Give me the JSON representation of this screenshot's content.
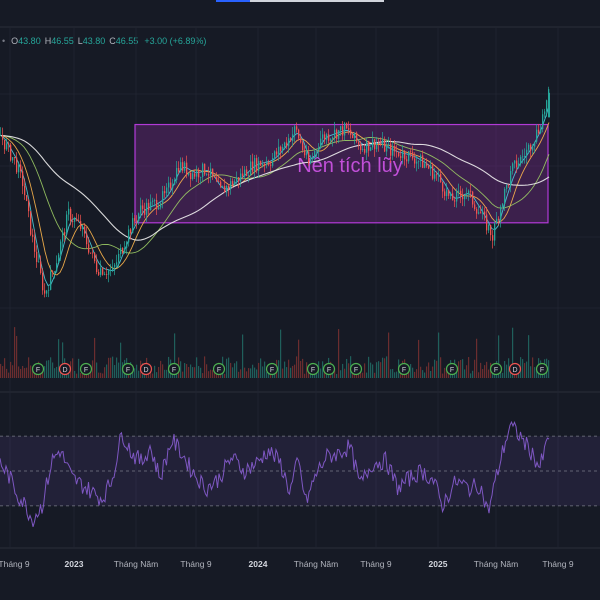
{
  "header": {
    "ohlc": {
      "open_label": "O",
      "open": "43.80",
      "high_label": "H",
      "high": "46.55",
      "low_label": "L",
      "low": "43.80",
      "close_label": "C",
      "close": "46.55",
      "change": "+3.00 (+6.89%)"
    }
  },
  "colors": {
    "background": "#161a25",
    "up": "#26a69a",
    "down": "#ef5350",
    "box_border": "#b13ad6",
    "box_fill": "#7b2a8e",
    "annotation": "#c14fd8",
    "rsi_line": "#7e57c2",
    "event_green": "#4caf50",
    "event_red": "#ef5350"
  },
  "chart_data": {
    "type": "candlestick",
    "annotation": "Nền tích lũy",
    "x_axis_labels": [
      "Tháng 9",
      "2023",
      "Tháng Năm",
      "Tháng 9",
      "2024",
      "Tháng Năm",
      "Tháng 9",
      "2025",
      "Tháng Năm",
      "Tháng 9"
    ],
    "last_bar": {
      "open": 43.8,
      "high": 46.55,
      "low": 43.8,
      "close": 46.55,
      "change": 3.0,
      "change_pct": 6.89
    },
    "price_path": [
      {
        "t": 0,
        "p": 41.8
      },
      {
        "t": 8,
        "p": 40.0
      },
      {
        "t": 14,
        "p": 39.0
      },
      {
        "t": 22,
        "p": 36.5
      },
      {
        "t": 32,
        "p": 30.0
      },
      {
        "t": 44,
        "p": 24.0
      },
      {
        "t": 55,
        "p": 27.5
      },
      {
        "t": 68,
        "p": 33.0
      },
      {
        "t": 80,
        "p": 31.5
      },
      {
        "t": 96,
        "p": 27.0
      },
      {
        "t": 112,
        "p": 26.5
      },
      {
        "t": 128,
        "p": 31.0
      },
      {
        "t": 140,
        "p": 33.5
      },
      {
        "t": 152,
        "p": 34.0
      },
      {
        "t": 165,
        "p": 35.0
      },
      {
        "t": 178,
        "p": 38.5
      },
      {
        "t": 192,
        "p": 37.5
      },
      {
        "t": 206,
        "p": 38.0
      },
      {
        "t": 220,
        "p": 35.5
      },
      {
        "t": 238,
        "p": 37.0
      },
      {
        "t": 252,
        "p": 38.5
      },
      {
        "t": 270,
        "p": 39.0
      },
      {
        "t": 282,
        "p": 40.5
      },
      {
        "t": 295,
        "p": 42.5
      },
      {
        "t": 308,
        "p": 38.5
      },
      {
        "t": 320,
        "p": 41.5
      },
      {
        "t": 332,
        "p": 42.0
      },
      {
        "t": 345,
        "p": 42.5
      },
      {
        "t": 360,
        "p": 40.5
      },
      {
        "t": 375,
        "p": 41.0
      },
      {
        "t": 392,
        "p": 40.0
      },
      {
        "t": 410,
        "p": 39.5
      },
      {
        "t": 425,
        "p": 38.5
      },
      {
        "t": 438,
        "p": 37.0
      },
      {
        "t": 450,
        "p": 34.5
      },
      {
        "t": 466,
        "p": 35.5
      },
      {
        "t": 480,
        "p": 33.0
      },
      {
        "t": 492,
        "p": 30.5
      },
      {
        "t": 500,
        "p": 34.0
      },
      {
        "t": 512,
        "p": 38.0
      },
      {
        "t": 526,
        "p": 40.0
      },
      {
        "t": 538,
        "p": 42.5
      },
      {
        "t": 549,
        "p": 46.55
      }
    ],
    "accumulation_box": {
      "t_start": 135,
      "t_end": 548,
      "price_high": 43.0,
      "price_low": 32.0
    },
    "y_range": [
      20,
      50
    ],
    "indicator": {
      "name": "RSI",
      "levels": [
        70,
        50,
        30
      ],
      "y_range": [
        15,
        85
      ],
      "path": [
        {
          "t": 0,
          "v": 55
        },
        {
          "t": 10,
          "v": 46
        },
        {
          "t": 18,
          "v": 36
        },
        {
          "t": 26,
          "v": 30
        },
        {
          "t": 32,
          "v": 22
        },
        {
          "t": 42,
          "v": 30
        },
        {
          "t": 52,
          "v": 56
        },
        {
          "t": 60,
          "v": 62
        },
        {
          "t": 72,
          "v": 46
        },
        {
          "t": 82,
          "v": 42
        },
        {
          "t": 92,
          "v": 38
        },
        {
          "t": 102,
          "v": 34
        },
        {
          "t": 112,
          "v": 45
        },
        {
          "t": 122,
          "v": 72
        },
        {
          "t": 132,
          "v": 60
        },
        {
          "t": 142,
          "v": 55
        },
        {
          "t": 150,
          "v": 64
        },
        {
          "t": 160,
          "v": 46
        },
        {
          "t": 172,
          "v": 68
        },
        {
          "t": 182,
          "v": 60
        },
        {
          "t": 192,
          "v": 50
        },
        {
          "t": 206,
          "v": 40
        },
        {
          "t": 218,
          "v": 45
        },
        {
          "t": 232,
          "v": 58
        },
        {
          "t": 244,
          "v": 50
        },
        {
          "t": 258,
          "v": 55
        },
        {
          "t": 268,
          "v": 62
        },
        {
          "t": 280,
          "v": 55
        },
        {
          "t": 290,
          "v": 38
        },
        {
          "t": 298,
          "v": 56
        },
        {
          "t": 306,
          "v": 32
        },
        {
          "t": 316,
          "v": 48
        },
        {
          "t": 326,
          "v": 58
        },
        {
          "t": 338,
          "v": 60
        },
        {
          "t": 350,
          "v": 64
        },
        {
          "t": 360,
          "v": 42
        },
        {
          "t": 372,
          "v": 54
        },
        {
          "t": 386,
          "v": 56
        },
        {
          "t": 398,
          "v": 40
        },
        {
          "t": 410,
          "v": 46
        },
        {
          "t": 422,
          "v": 50
        },
        {
          "t": 434,
          "v": 44
        },
        {
          "t": 442,
          "v": 30
        },
        {
          "t": 456,
          "v": 44
        },
        {
          "t": 470,
          "v": 40
        },
        {
          "t": 480,
          "v": 42
        },
        {
          "t": 488,
          "v": 26
        },
        {
          "t": 496,
          "v": 46
        },
        {
          "t": 504,
          "v": 64
        },
        {
          "t": 510,
          "v": 76
        },
        {
          "t": 520,
          "v": 70
        },
        {
          "t": 530,
          "v": 62
        },
        {
          "t": 540,
          "v": 52
        },
        {
          "t": 549,
          "v": 70
        }
      ]
    },
    "events": [
      {
        "t": 38,
        "type": "F"
      },
      {
        "t": 65,
        "type": "D"
      },
      {
        "t": 86,
        "type": "F"
      },
      {
        "t": 128,
        "type": "F"
      },
      {
        "t": 146,
        "type": "D"
      },
      {
        "t": 174,
        "type": "F"
      },
      {
        "t": 219,
        "type": "F"
      },
      {
        "t": 272,
        "type": "F"
      },
      {
        "t": 313,
        "type": "F"
      },
      {
        "t": 329,
        "type": "F"
      },
      {
        "t": 356,
        "type": "F"
      },
      {
        "t": 404,
        "type": "F"
      },
      {
        "t": 452,
        "type": "F"
      },
      {
        "t": 496,
        "type": "F"
      },
      {
        "t": 515,
        "type": "D"
      },
      {
        "t": 542,
        "type": "F"
      }
    ],
    "moving_averages": [
      {
        "color": "#4dd0e1",
        "period": 10
      },
      {
        "color": "#ffb74d",
        "period": 20
      },
      {
        "color": "#9ccc65",
        "period": 50
      },
      {
        "color": "#eeeeee",
        "period": 100
      }
    ],
    "grid": true
  }
}
